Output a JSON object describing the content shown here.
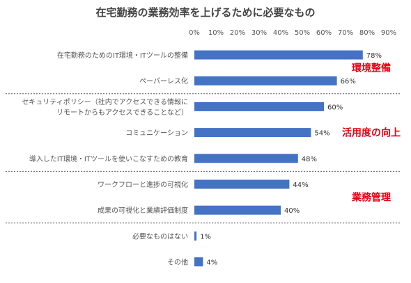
{
  "chart_data": {
    "type": "bar",
    "orientation": "horizontal",
    "title": "在宅勤務の業務効率を上げるために必要なもの",
    "xlim": [
      0,
      90
    ],
    "x_ticks": [
      "0%",
      "10%",
      "20%",
      "30%",
      "40%",
      "50%",
      "60%",
      "70%",
      "80%",
      "90%"
    ],
    "categories": [
      [
        "在宅勤務のためのIT環境・ITツールの整備"
      ],
      [
        "ペーパーレス化"
      ],
      [
        "セキュリティポリシー（社内でアクセスできる情報に",
        "リモートからもアクセスできることなど）"
      ],
      [
        "コミュニケーション"
      ],
      [
        "導入したIT環境・ITツールを使いこなすための教育"
      ],
      [
        "ワークフローと進捗の可視化"
      ],
      [
        "成果の可視化と業績評価制度"
      ],
      [
        "必要なものはない"
      ],
      [
        "その他"
      ]
    ],
    "values": [
      78,
      66,
      60,
      54,
      48,
      44,
      40,
      1,
      4
    ],
    "data_labels": [
      "78%",
      "66%",
      "60%",
      "54%",
      "48%",
      "44%",
      "40%",
      "1%",
      "4%"
    ],
    "groups": [
      {
        "label": "環境整備",
        "items": [
          0,
          1
        ]
      },
      {
        "label": "活用度の向上",
        "items": [
          2,
          3,
          4
        ]
      },
      {
        "label": "業務管理",
        "items": [
          5,
          6
        ]
      }
    ],
    "colors": {
      "bar": "#4472c4",
      "group_label": "#e60012",
      "separator": "#595959"
    }
  }
}
